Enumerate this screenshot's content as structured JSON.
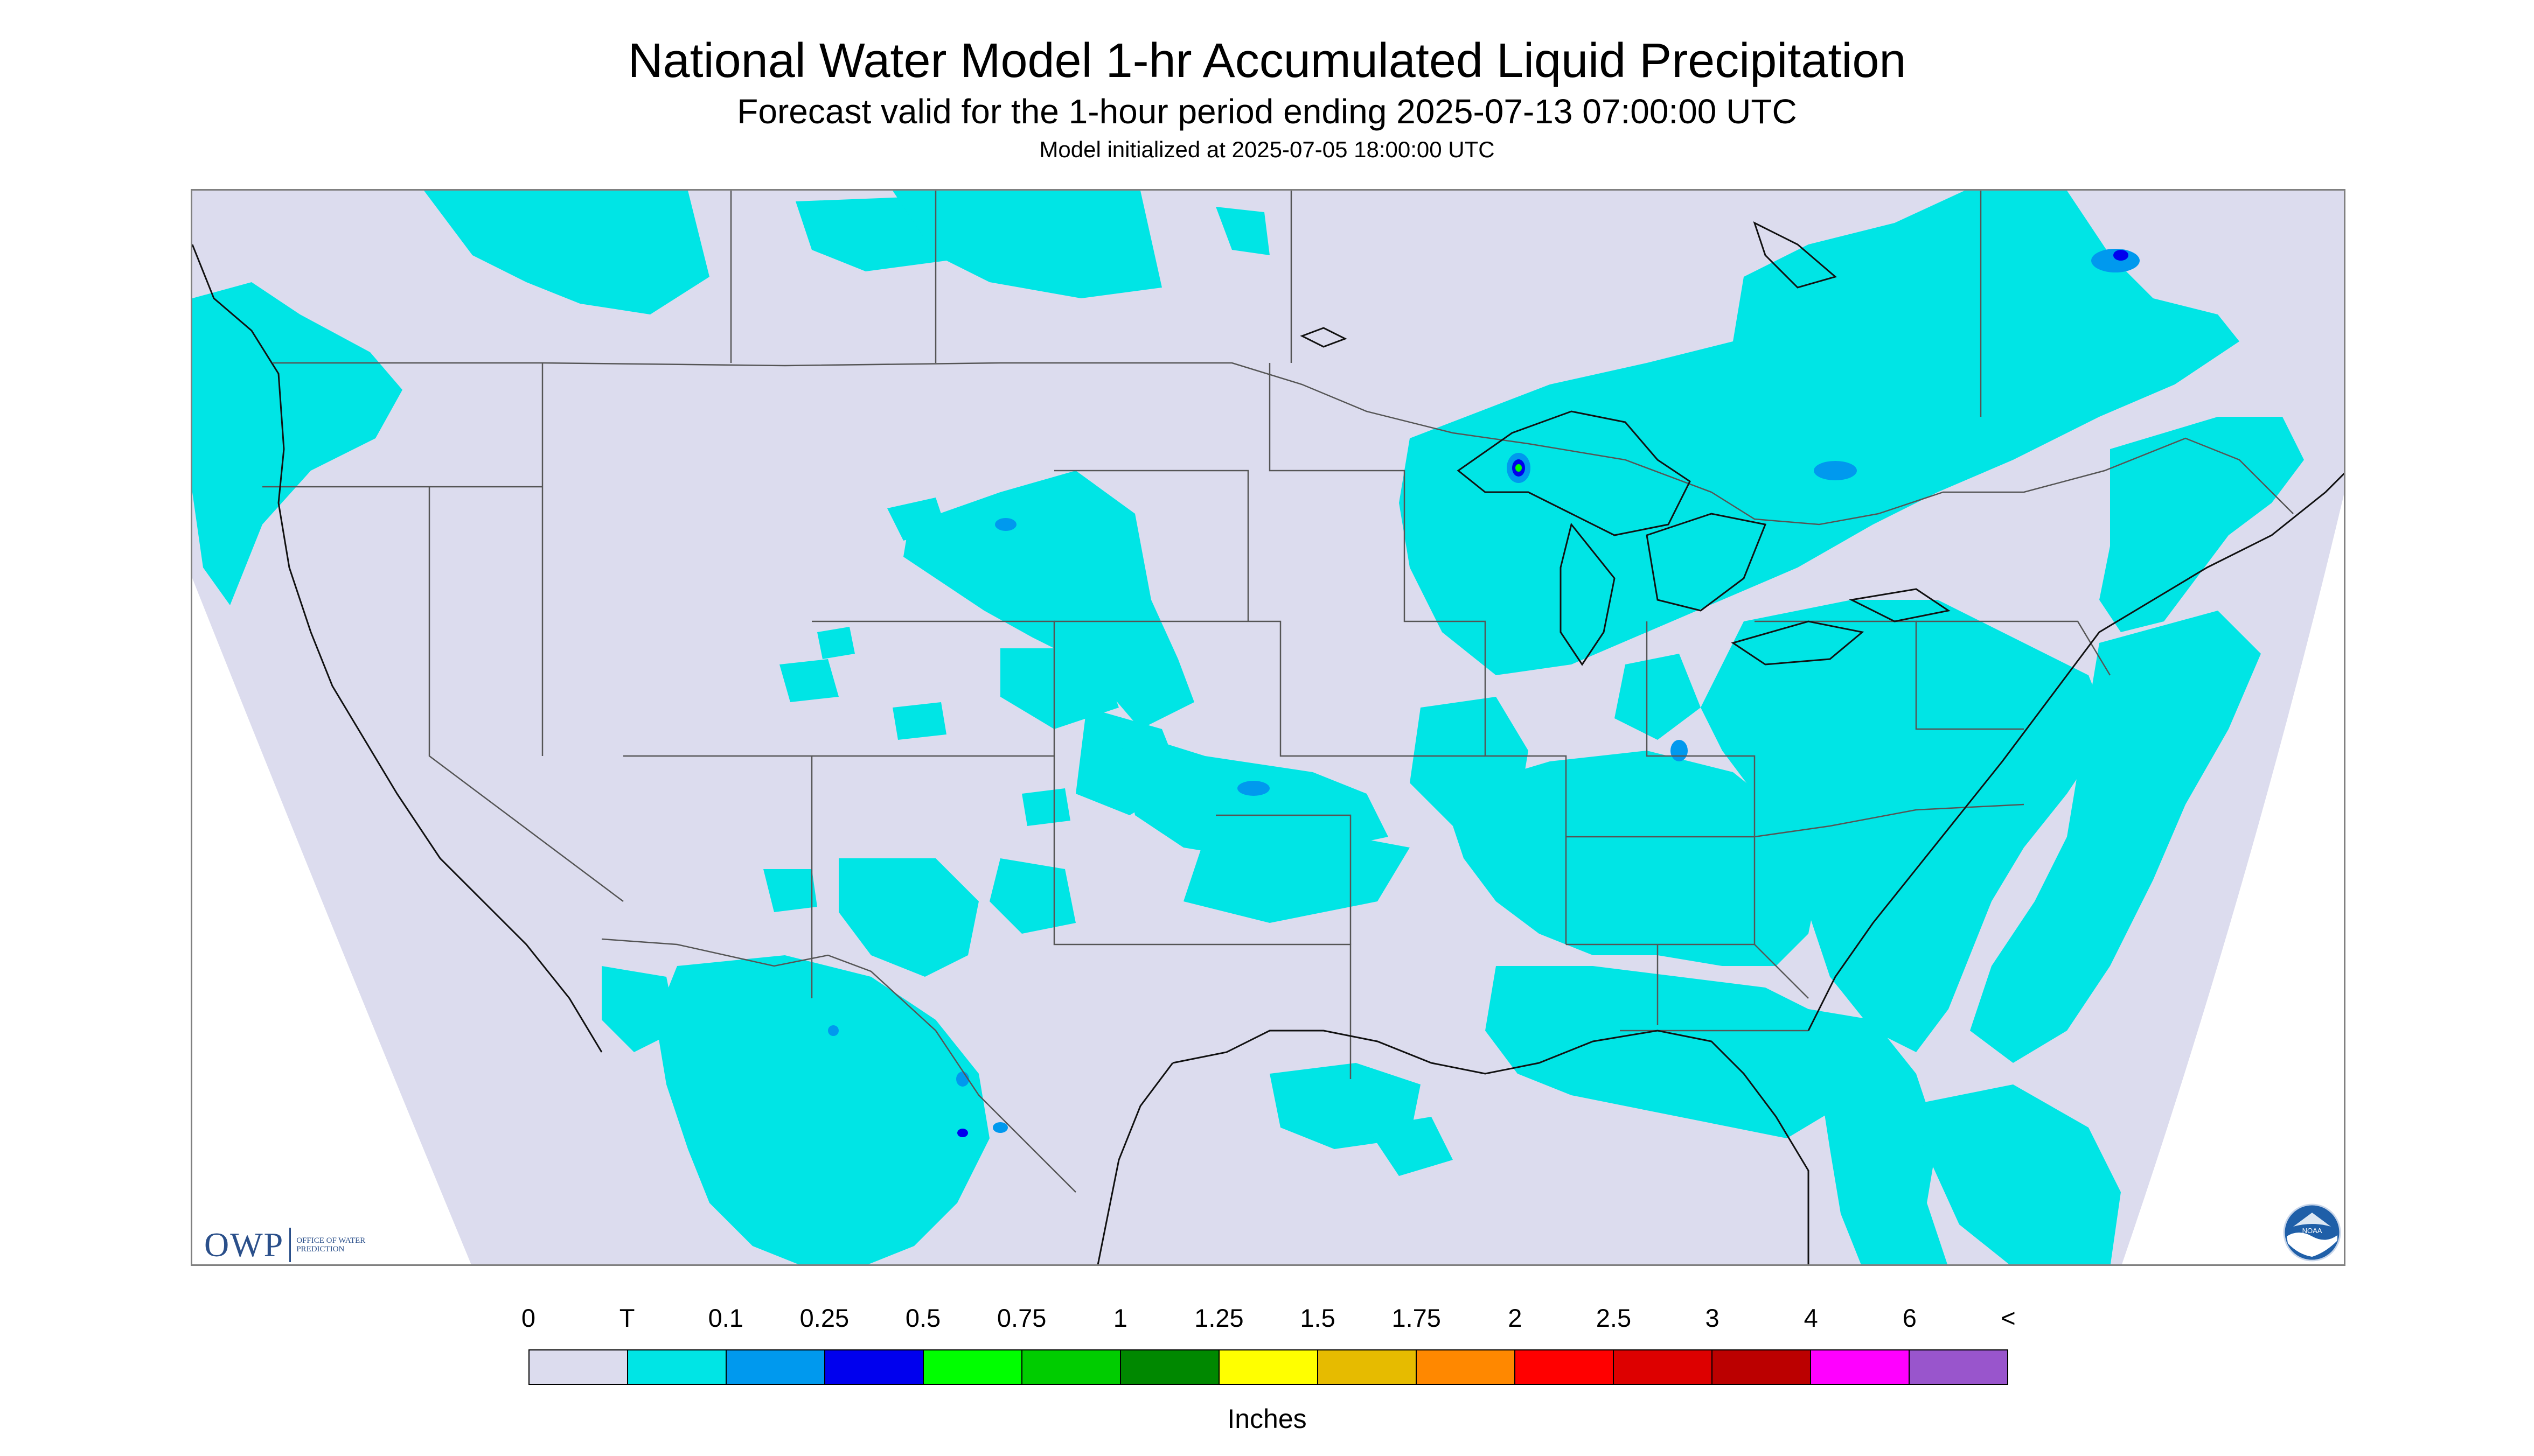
{
  "title": "National Water Model 1-hr Accumulated Liquid Precipitation",
  "subtitle": "Forecast valid for the 1-hour period ending 2025-07-13 07:00:00 UTC",
  "init_text": "Model initialized at 2025-07-05 18:00:00 UTC",
  "logos": {
    "owp_letters": "OWP",
    "owp_sub": "OFFICE OF WATER PREDICTION",
    "noaa": "NOAA"
  },
  "legend": {
    "unit": "Inches",
    "labels": [
      "0",
      "T",
      "0.1",
      "0.25",
      "0.5",
      "0.75",
      "1",
      "1.25",
      "1.5",
      "1.75",
      "2",
      "2.5",
      "3",
      "4",
      "6",
      "<"
    ],
    "colors": [
      "#dcdcee",
      "#00e5e5",
      "#0099ee",
      "#0000ee",
      "#00ff00",
      "#00cc00",
      "#008800",
      "#ffff00",
      "#e6bb00",
      "#ff8800",
      "#ff0000",
      "#dd0000",
      "#bb0000",
      "#ff00ff",
      "#9955cc"
    ]
  },
  "colors": {
    "no_precip": "#dcdcee",
    "trace": "#00e5e5",
    "light": "#0099ee",
    "moderate": "#0000ee",
    "heavy_green": "#00ff00",
    "outside_domain": "#ffffff",
    "borders": "#555555"
  }
}
